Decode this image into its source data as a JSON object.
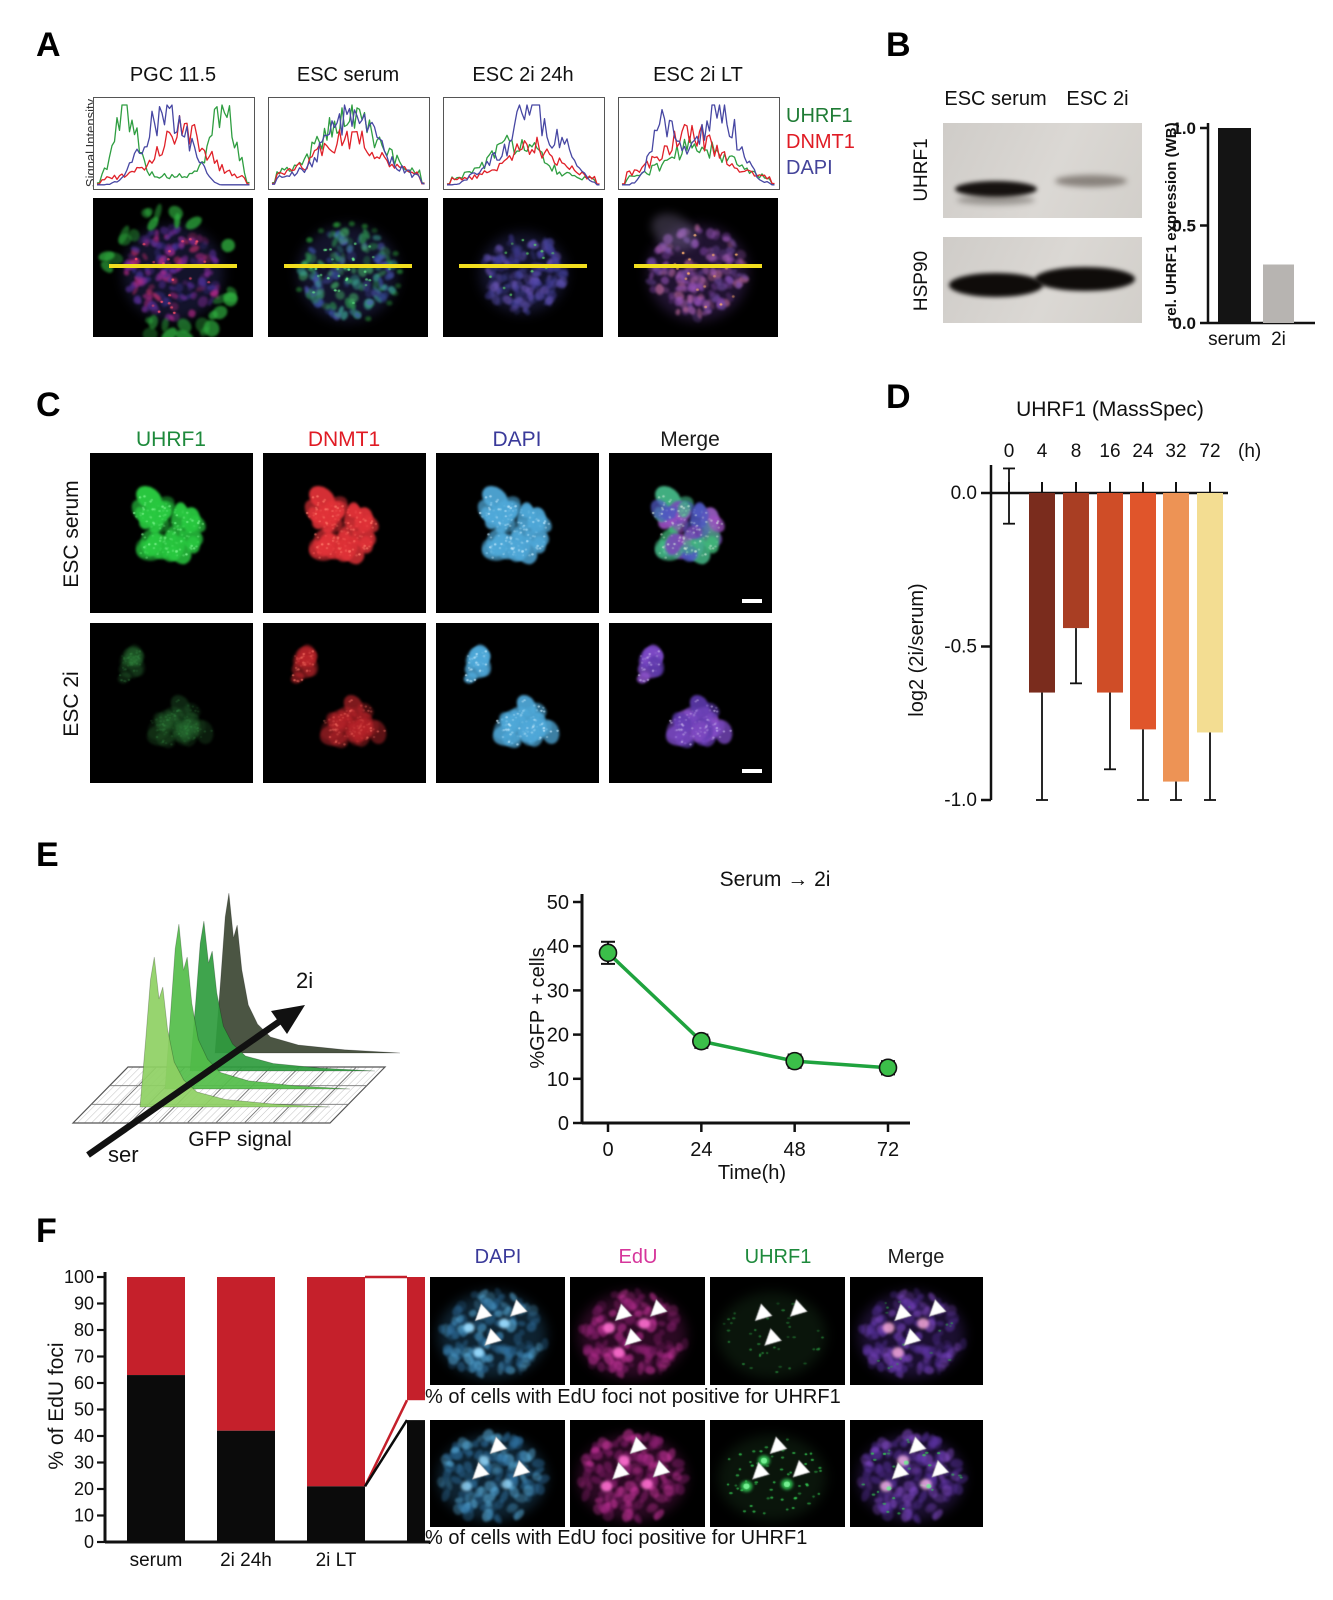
{
  "panels": {
    "A": {
      "label": "A",
      "y_axis_label": "Signal Intensity",
      "columns": [
        "PGC 11.5",
        "ESC serum",
        "ESC 2i 24h",
        "ESC 2i LT"
      ],
      "legend": [
        {
          "text": "UHRF1",
          "color": "#1e7b34"
        },
        {
          "text": "DNMT1",
          "color": "#e01b24"
        },
        {
          "text": "DAPI",
          "color": "#44449a"
        }
      ]
    },
    "B": {
      "label": "B",
      "lane_headers": [
        "ESC serum",
        "ESC 2i"
      ],
      "blot_rows": [
        "UHRF1",
        "HSP90"
      ]
    },
    "C": {
      "label": "C",
      "column_labels": [
        {
          "text": "UHRF1",
          "color": "#1e8a3c"
        },
        {
          "text": "DNMT1",
          "color": "#e01b24"
        },
        {
          "text": "DAPI",
          "color": "#3a3a9a"
        },
        {
          "text": "Merge",
          "color": "#1a1a1a"
        }
      ],
      "row_labels": [
        "ESC serum",
        "ESC 2i"
      ]
    },
    "D": {
      "label": "D"
    },
    "E": {
      "label": "E",
      "ridgeline": {
        "xlabel": "GFP signal",
        "start_label": "ser",
        "end_label": "2i"
      }
    },
    "F": {
      "label": "F",
      "image_column_labels": [
        {
          "text": "DAPI",
          "color": "#3a3a9a"
        },
        {
          "text": "EdU",
          "color": "#d6369b"
        },
        {
          "text": "UHRF1",
          "color": "#1e8a3c"
        },
        {
          "text": "Merge",
          "color": "#1a1a1a"
        }
      ],
      "caption_top": "% of cells with EdU foci not positive for UHRF1",
      "caption_bottom": "% of cells with EdU foci positive for UHRF1"
    }
  },
  "chart_data": [
    {
      "id": "uhrf1_wb_quant",
      "panel": "B",
      "type": "bar",
      "ylabel": "rel. UHRF1 expression (WB)",
      "categories": [
        "serum",
        "2i"
      ],
      "values": [
        1.0,
        0.3
      ],
      "bar_colors": [
        "#141414",
        "#b7b4b1"
      ],
      "yticks": [
        "0.0",
        "0.5",
        "1.0"
      ],
      "ylim": [
        0,
        1
      ]
    },
    {
      "id": "uhrf1_massspec",
      "panel": "D",
      "type": "bar",
      "title": "UHRF1 (MassSpec)",
      "xlabel": "(h)",
      "ylabel": "log2 (2i/serum)",
      "categories": [
        "0",
        "4",
        "8",
        "16",
        "24",
        "32",
        "72"
      ],
      "values": [
        0,
        -0.65,
        -0.44,
        -0.65,
        -0.77,
        -0.94,
        -0.78
      ],
      "whisker_low": [
        -0.1,
        -1.0,
        -0.62,
        -0.9,
        -1.0,
        -1.0,
        -1.0
      ],
      "whisker_high": [
        0.08,
        0,
        0,
        0,
        0,
        0,
        0
      ],
      "bar_colors": [
        "none",
        "#7a2c1d",
        "#a93e23",
        "#cf4d27",
        "#e0552b",
        "#ed9355",
        "#f3dd92"
      ],
      "yticks": [
        "0.0",
        "-0.5",
        "-1.0"
      ],
      "ylim": [
        0,
        -1
      ]
    },
    {
      "id": "gfp_positive_cells",
      "panel": "E",
      "type": "line",
      "title": "Serum → 2i",
      "xlabel": "Time(h)",
      "ylabel": "%GFP + cells",
      "x": [
        0,
        24,
        48,
        72
      ],
      "y": [
        38.5,
        18.5,
        14,
        12.5
      ],
      "yerr": [
        2.5,
        1.5,
        1.5,
        1.5
      ],
      "yticks": [
        0,
        10,
        20,
        30,
        40,
        50
      ],
      "ylim": [
        0,
        50
      ],
      "line_color": "#1fa33e",
      "marker_color": "#3bbf49"
    },
    {
      "id": "gfp_ridgeline",
      "panel": "E",
      "type": "area",
      "xlabel": "GFP signal",
      "annotations": [
        "ser",
        "2i"
      ],
      "description": "GFP intensity distributions shifting from serum (light green, front) to 2i (dark green, back)"
    },
    {
      "id": "edu_foci",
      "panel": "F",
      "type": "stacked-bar",
      "ylabel": "% of EdU foci",
      "categories": [
        "serum",
        "2i 24h",
        "2i LT"
      ],
      "series": [
        {
          "name": "EdU foci positive for UHRF1",
          "color": "#0b0b0b",
          "values": [
            63,
            42,
            21
          ]
        },
        {
          "name": "EdU foci not positive for UHRF1",
          "color": "#c5202b",
          "values": [
            37,
            58,
            79
          ]
        }
      ],
      "yticks": [
        0,
        10,
        20,
        30,
        40,
        50,
        60,
        70,
        80,
        90,
        100
      ],
      "ylim": [
        0,
        100
      ],
      "breakout": {
        "category": "2i LT",
        "red_span": [
          53.5,
          100
        ],
        "black_span": [
          0,
          46
        ]
      }
    }
  ]
}
